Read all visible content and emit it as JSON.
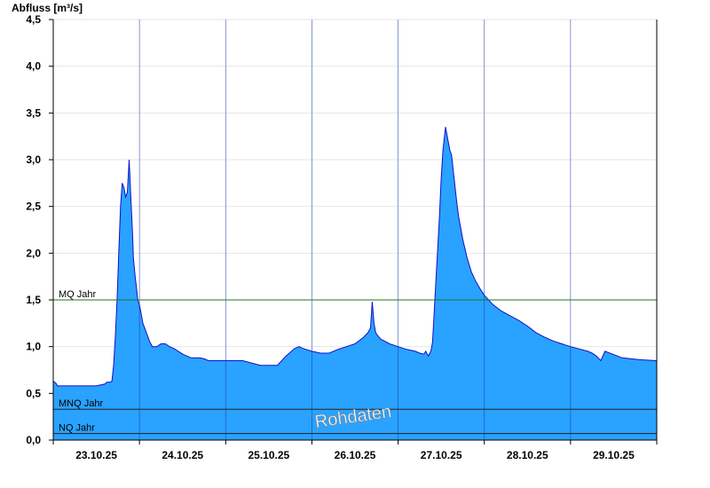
{
  "chart_data": {
    "type": "area",
    "ylabel": "Abfluss [m³/s]",
    "ylim": [
      0,
      4.5
    ],
    "yticks": [
      0,
      0.5,
      1.0,
      1.5,
      2.0,
      2.5,
      3.0,
      3.5,
      4.0,
      4.5
    ],
    "ytick_labels": [
      "0,0",
      "0,5",
      "1,0",
      "1,5",
      "2,0",
      "2,5",
      "3,0",
      "3,5",
      "4,0",
      "4,5"
    ],
    "xlim": [
      0,
      7
    ],
    "x_unit": "days from 22.10.25 12:00",
    "xtick_labels": [
      "23.10.25",
      "24.10.25",
      "25.10.25",
      "26.10.25",
      "27.10.25",
      "28.10.25",
      "29.10.25"
    ],
    "day_boundaries": [
      1,
      2,
      3,
      4,
      5,
      6
    ],
    "grid": true,
    "fill_color": "#2aa2ff",
    "line_color": "#1010c8",
    "reference_lines": [
      {
        "label": "MQ Jahr",
        "value": 1.5,
        "color": "#1a7a1a"
      },
      {
        "label": "MNQ Jahr",
        "value": 0.33,
        "color": "#222222"
      },
      {
        "label": "NQ Jahr",
        "value": 0.07,
        "color": "#222222"
      }
    ],
    "watermark": "Rohdaten",
    "series": [
      {
        "x": [
          0,
          0.03,
          0.05,
          0.3,
          0.5,
          0.6,
          0.62,
          0.64,
          0.66,
          0.68,
          0.7,
          0.72,
          0.74,
          0.76,
          0.78,
          0.8,
          0.82,
          0.84,
          0.86,
          0.88,
          0.9,
          0.92,
          0.93,
          0.95,
          0.97,
          0.98,
          1.0,
          1.02,
          1.04,
          1.06,
          1.08,
          1.1,
          1.12,
          1.15,
          1.2,
          1.25,
          1.3,
          1.35,
          1.4,
          1.45,
          1.5,
          1.6,
          1.7,
          1.75,
          1.8,
          1.85,
          1.9,
          2.0,
          2.2,
          2.4,
          2.6,
          2.65,
          2.7,
          2.8,
          2.85,
          2.9,
          3.0,
          3.1,
          3.2,
          3.3,
          3.4,
          3.5,
          3.6,
          3.65,
          3.68,
          3.7,
          3.72,
          3.74,
          3.76,
          3.8,
          3.9,
          4.0,
          4.1,
          4.2,
          4.25,
          4.3,
          4.32,
          4.35,
          4.38,
          4.4,
          4.42,
          4.45,
          4.48,
          4.5,
          4.52,
          4.55,
          4.58,
          4.6,
          4.62,
          4.65,
          4.68,
          4.7,
          4.75,
          4.8,
          4.85,
          4.9,
          4.95,
          5.0,
          5.1,
          5.2,
          5.3,
          5.4,
          5.5,
          5.6,
          5.7,
          5.8,
          5.9,
          6.0,
          6.2,
          6.25,
          6.3,
          6.35,
          6.4,
          6.6,
          6.8,
          7.0
        ],
        "y": [
          0.63,
          0.61,
          0.58,
          0.58,
          0.58,
          0.6,
          0.62,
          0.62,
          0.62,
          0.63,
          0.8,
          1.1,
          1.5,
          2.0,
          2.5,
          2.75,
          2.7,
          2.6,
          2.65,
          3.0,
          2.6,
          2.2,
          1.95,
          1.75,
          1.6,
          1.5,
          1.45,
          1.35,
          1.25,
          1.2,
          1.15,
          1.1,
          1.05,
          1.0,
          1.0,
          1.03,
          1.03,
          1.0,
          0.98,
          0.95,
          0.92,
          0.88,
          0.88,
          0.87,
          0.85,
          0.85,
          0.85,
          0.85,
          0.85,
          0.8,
          0.8,
          0.85,
          0.9,
          0.98,
          1.0,
          0.98,
          0.95,
          0.93,
          0.93,
          0.97,
          1.0,
          1.03,
          1.1,
          1.15,
          1.2,
          1.48,
          1.25,
          1.15,
          1.12,
          1.08,
          1.03,
          1.0,
          0.97,
          0.95,
          0.93,
          0.92,
          0.95,
          0.9,
          0.95,
          1.05,
          1.4,
          1.9,
          2.4,
          2.8,
          3.1,
          3.35,
          3.2,
          3.1,
          3.05,
          2.8,
          2.55,
          2.4,
          2.15,
          1.95,
          1.8,
          1.7,
          1.62,
          1.55,
          1.45,
          1.38,
          1.33,
          1.28,
          1.22,
          1.15,
          1.1,
          1.06,
          1.03,
          1.0,
          0.95,
          0.93,
          0.9,
          0.85,
          0.95,
          0.88,
          0.86,
          0.85
        ]
      }
    ]
  }
}
